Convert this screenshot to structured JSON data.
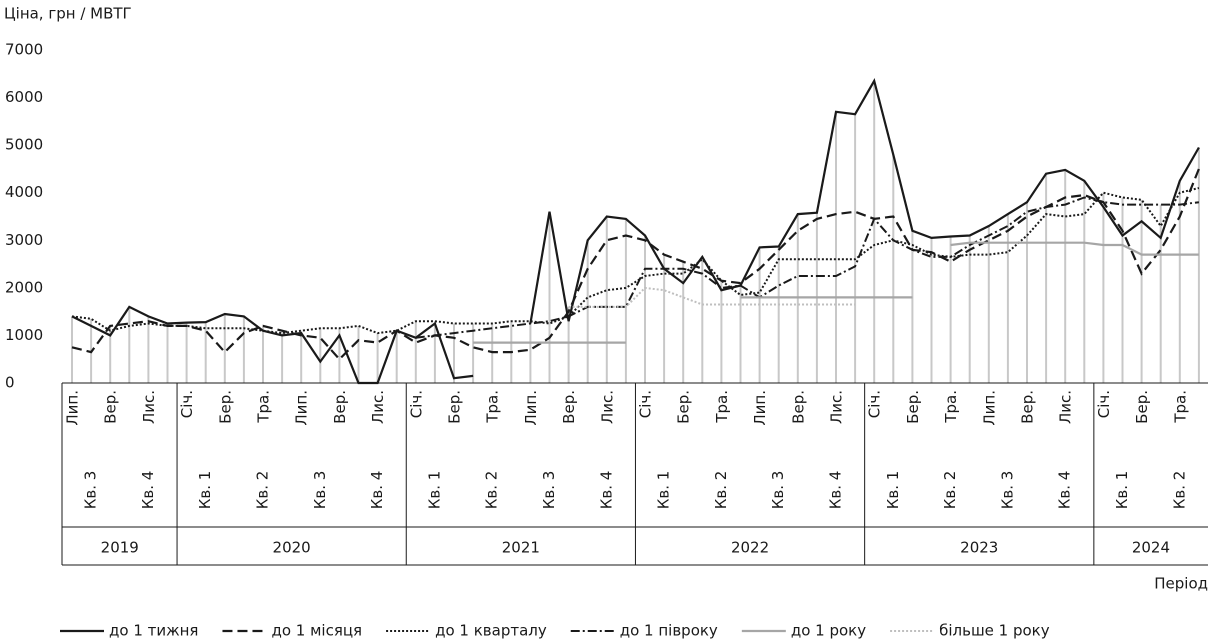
{
  "chart_data": {
    "type": "line",
    "y_axis_label": "Ціна, грн / МВТГ",
    "x_axis_label": "Період",
    "ylim": [
      0,
      7000
    ],
    "yticks": [
      0,
      1000,
      2000,
      3000,
      4000,
      5000,
      6000,
      7000
    ],
    "categories": [
      "Лип.",
      null,
      "Вер.",
      null,
      "Лис.",
      null,
      "Січ.",
      null,
      "Бер.",
      null,
      "Тра.",
      null,
      "Лип.",
      null,
      "Вер.",
      null,
      "Лис.",
      null,
      "Січ.",
      null,
      "Бер.",
      null,
      "Тра.",
      null,
      "Лип.",
      null,
      "Вер.",
      null,
      "Лис.",
      null,
      "Січ.",
      null,
      "Бер.",
      null,
      "Тра.",
      null,
      "Лип.",
      null,
      "Вер.",
      null,
      "Лис.",
      null,
      "Січ.",
      null,
      "Бер.",
      null,
      "Тра.",
      null,
      "Лип.",
      null,
      "Вер.",
      null,
      "Лис.",
      null,
      "Січ.",
      null,
      "Бер.",
      null,
      "Тра.",
      null
    ],
    "x_groups": [
      {
        "year": "2019",
        "quarters": [
          "Кв. 3",
          "Кв. 4"
        ]
      },
      {
        "year": "2020",
        "quarters": [
          "Кв. 1",
          "Кв. 2",
          "Кв. 3",
          "Кв. 4"
        ]
      },
      {
        "year": "2021",
        "quarters": [
          "Кв. 1",
          "Кв. 2",
          "Кв. 3",
          "Кв. 4"
        ]
      },
      {
        "year": "2022",
        "quarters": [
          "Кв. 1",
          "Кв. 2",
          "Кв. 3",
          "Кв. 4"
        ]
      },
      {
        "year": "2023",
        "quarters": [
          "Кв. 1",
          "Кв. 2",
          "Кв. 3",
          "Кв. 4"
        ]
      },
      {
        "year": "2024",
        "quarters": [
          "Кв. 1",
          "Кв. 2"
        ]
      }
    ],
    "drop_lines": true,
    "series": [
      {
        "name": "до 1 тижня",
        "color": "#1a1a1a",
        "style": "solid",
        "values": [
          1400,
          1200,
          1000,
          1600,
          1400,
          1250,
          1270,
          1280,
          1450,
          1400,
          1100,
          1000,
          1050,
          450,
          1000,
          0,
          0,
          1100,
          950,
          1250,
          100,
          150,
          null,
          null,
          1250,
          3600,
          1300,
          3000,
          3500,
          3450,
          3100,
          2400,
          2100,
          2650,
          1950,
          2050,
          2850,
          2870,
          3550,
          3580,
          5700,
          5650,
          6350,
          4800,
          3200,
          3050,
          3080,
          3100,
          3300,
          3550,
          3800,
          4400,
          4480,
          4250,
          3700,
          3100,
          3400,
          3050,
          4250,
          4950
        ]
      },
      {
        "name": "до 1 місяця",
        "color": "#1a1a1a",
        "style": "dashed",
        "values": [
          750,
          650,
          1200,
          1250,
          1300,
          1200,
          1200,
          1100,
          650,
          1050,
          1200,
          1100,
          1000,
          950,
          500,
          900,
          850,
          1100,
          850,
          1000,
          950,
          750,
          650,
          650,
          700,
          950,
          1500,
          2400,
          3000,
          3100,
          3000,
          2700,
          2550,
          2400,
          2150,
          2100,
          2400,
          2800,
          3200,
          3450,
          3550,
          3600,
          3450,
          3500,
          2800,
          2750,
          2550,
          2800,
          3000,
          3200,
          3500,
          3700,
          3900,
          3950,
          3800,
          3200,
          2300,
          2800,
          3500,
          4500
        ]
      },
      {
        "name": "до 1 кварталу",
        "color": "#1a1a1a",
        "style": "dotted",
        "values": [
          1400,
          1350,
          1100,
          1200,
          1250,
          1200,
          1200,
          1150,
          1150,
          1150,
          1100,
          1050,
          1100,
          1150,
          1150,
          1200,
          1050,
          1100,
          1300,
          1300,
          1250,
          1250,
          1250,
          1300,
          1300,
          1250,
          1400,
          1800,
          1950,
          2000,
          2250,
          2300,
          2300,
          2600,
          2150,
          1850,
          1900,
          2600,
          2600,
          2600,
          2600,
          2600,
          2900,
          3000,
          2900,
          2700,
          2650,
          2700,
          2700,
          2750,
          3100,
          3550,
          3500,
          3550,
          4000,
          3900,
          3850,
          3300,
          4000,
          4100
        ]
      },
      {
        "name": "до 1 півроку",
        "color": "#1a1a1a",
        "style": "dashdot",
        "values": [
          null,
          null,
          null,
          null,
          null,
          null,
          null,
          null,
          null,
          null,
          null,
          null,
          null,
          null,
          null,
          null,
          null,
          null,
          950,
          1000,
          1050,
          1100,
          1150,
          1200,
          1250,
          1300,
          1400,
          1600,
          1600,
          1600,
          2400,
          2400,
          2400,
          2300,
          2000,
          2050,
          1800,
          2050,
          2250,
          2250,
          2250,
          2450,
          3450,
          3000,
          2800,
          2650,
          2650,
          2900,
          3100,
          3300,
          3600,
          3700,
          3750,
          3900,
          3800,
          3750,
          3750,
          3750,
          3750,
          3800
        ]
      },
      {
        "name": "до 1 року",
        "color": "#a6a6a6",
        "style": "solid",
        "values": [
          null,
          null,
          null,
          null,
          null,
          null,
          null,
          null,
          null,
          null,
          null,
          null,
          null,
          null,
          null,
          null,
          null,
          null,
          null,
          null,
          null,
          850,
          850,
          850,
          850,
          850,
          850,
          850,
          850,
          850,
          null,
          null,
          null,
          null,
          null,
          1800,
          1800,
          1800,
          1800,
          1800,
          1800,
          1800,
          1800,
          1800,
          1800,
          null,
          2900,
          2950,
          2950,
          2950,
          2950,
          2950,
          2950,
          2950,
          2900,
          2900,
          2700,
          2700,
          2700,
          2700
        ]
      },
      {
        "name": "більше 1 року",
        "color": "#bfbfbf",
        "style": "dotted",
        "values": [
          null,
          null,
          null,
          null,
          null,
          null,
          null,
          null,
          null,
          null,
          null,
          null,
          null,
          null,
          null,
          null,
          null,
          null,
          null,
          null,
          null,
          null,
          null,
          null,
          null,
          null,
          1600,
          1600,
          1600,
          1600,
          2000,
          1950,
          1800,
          1650,
          1650,
          1650,
          1650,
          1650,
          1650,
          1650,
          1650,
          1650,
          null,
          null,
          null,
          null,
          null,
          null,
          null,
          null,
          null,
          null,
          null,
          null,
          null,
          null,
          null,
          null,
          null,
          null
        ]
      }
    ]
  }
}
